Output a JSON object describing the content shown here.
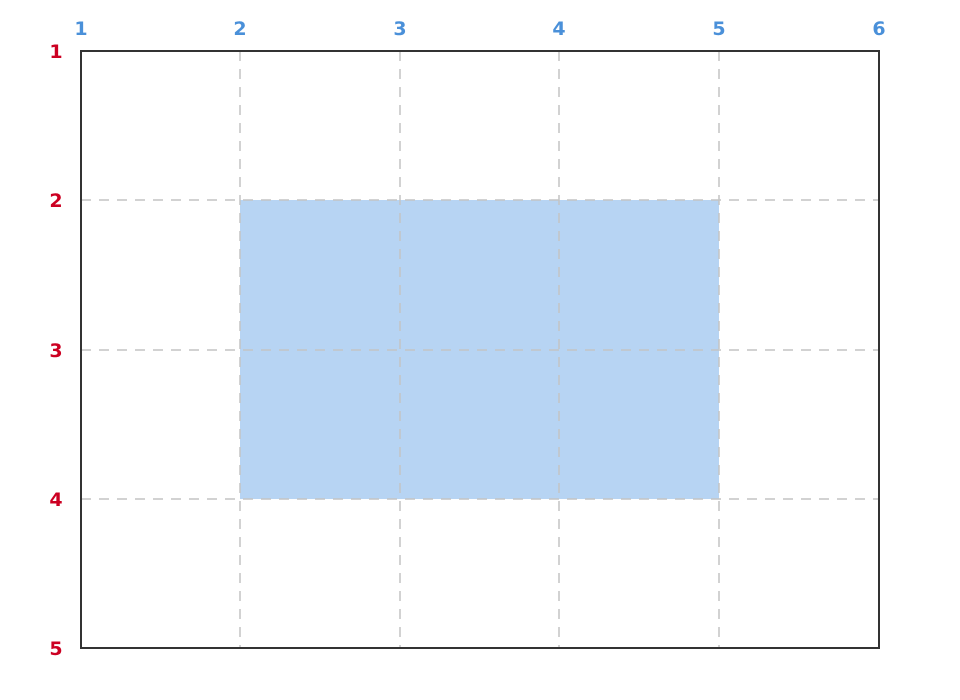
{
  "columns": {
    "labels": [
      "1",
      "2",
      "3",
      "4",
      "5",
      "6"
    ],
    "color": "#4a90d9"
  },
  "rows": {
    "labels": [
      "1",
      "2",
      "3",
      "4",
      "5"
    ],
    "color": "#cc0022"
  },
  "grid": {
    "border_color": "#333333",
    "line_color": "#c4c4c4",
    "line_style": "dashed"
  },
  "highlight_area": {
    "column_start": 2,
    "column_end": 5,
    "row_start": 2,
    "row_end": 4,
    "color": "#b7d4f3"
  }
}
